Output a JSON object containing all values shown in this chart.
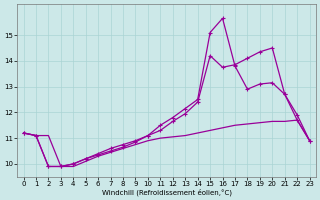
{
  "xlabel": "Windchill (Refroidissement éolien,°C)",
  "bg_color": "#cce8e8",
  "line_color": "#990099",
  "grid_color": "#aad4d4",
  "x": [
    0,
    1,
    2,
    3,
    4,
    5,
    6,
    7,
    8,
    9,
    10,
    11,
    12,
    13,
    14,
    15,
    16,
    17,
    18,
    19,
    20,
    21,
    22,
    23
  ],
  "line1": [
    11.2,
    11.1,
    11.1,
    9.9,
    9.9,
    10.1,
    10.3,
    10.45,
    10.6,
    10.75,
    10.9,
    11.0,
    11.05,
    11.1,
    11.2,
    11.3,
    11.4,
    11.5,
    11.55,
    11.6,
    11.65,
    11.65,
    11.7,
    10.9
  ],
  "line2": [
    11.2,
    11.1,
    9.9,
    9.9,
    10.0,
    10.2,
    10.4,
    10.6,
    10.75,
    10.9,
    11.1,
    11.3,
    11.65,
    11.95,
    12.4,
    14.2,
    13.75,
    13.85,
    14.1,
    14.35,
    14.5,
    12.7,
    11.9,
    10.9
  ],
  "line3": [
    11.2,
    11.1,
    9.9,
    9.9,
    10.0,
    10.2,
    10.35,
    10.5,
    10.65,
    10.85,
    11.1,
    11.5,
    11.8,
    12.15,
    12.5,
    15.1,
    15.65,
    13.8,
    12.9,
    13.1,
    13.15,
    12.7,
    11.7,
    10.9
  ],
  "ylim": [
    9.5,
    16.2
  ],
  "xlim": [
    -0.5,
    23.5
  ],
  "yticks": [
    10,
    11,
    12,
    13,
    14,
    15
  ],
  "xticks": [
    0,
    1,
    2,
    3,
    4,
    5,
    6,
    7,
    8,
    9,
    10,
    11,
    12,
    13,
    14,
    15,
    16,
    17,
    18,
    19,
    20,
    21,
    22,
    23
  ],
  "tick_labelsize": 5,
  "xlabel_fontsize": 5,
  "linewidth": 0.9,
  "markersize": 2.5
}
